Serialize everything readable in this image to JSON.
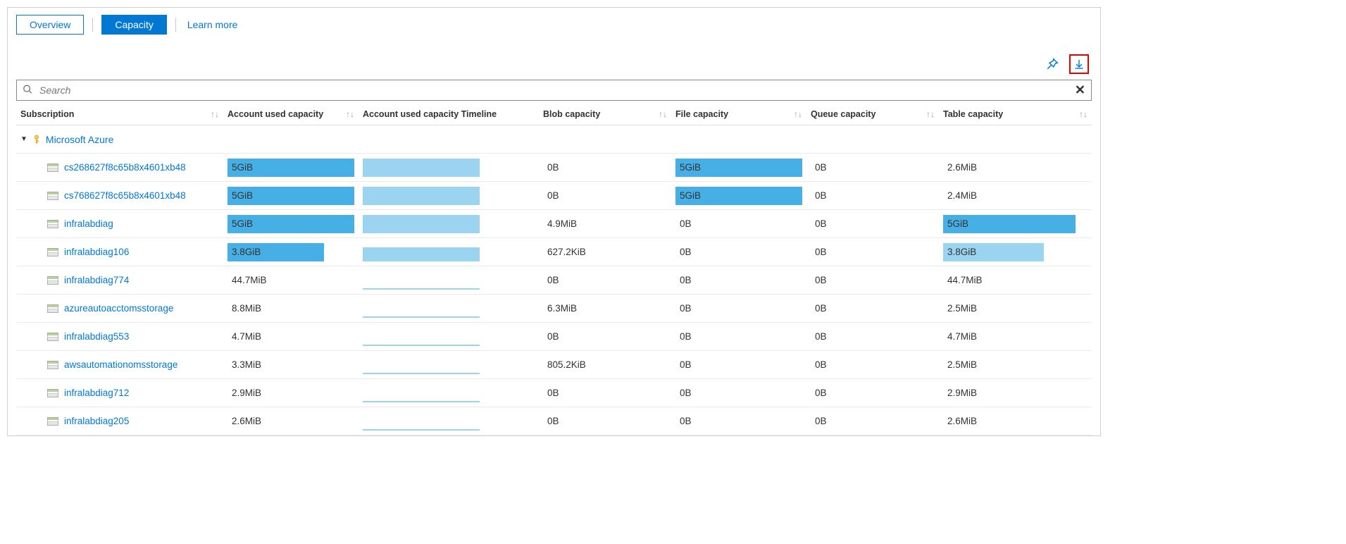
{
  "colors": {
    "primary": "#0078d4",
    "bar_dark": "#46b0e6",
    "bar_light": "#9bd4f0",
    "highlight_border": "#e60000",
    "border": "#d0d0d0",
    "row_border": "#edebe9",
    "text": "#323130",
    "muted": "#a19f9d"
  },
  "tabs": {
    "overview": "Overview",
    "capacity": "Capacity",
    "learn_more": "Learn more"
  },
  "search": {
    "placeholder": "Search"
  },
  "columns": {
    "subscription": "Subscription",
    "account_used": "Account used capacity",
    "timeline": "Account used capacity Timeline",
    "blob": "Blob capacity",
    "file": "File capacity",
    "queue": "Queue capacity",
    "table": "Table capacity"
  },
  "group": {
    "name": "Microsoft Azure"
  },
  "max_capacity_gib": 5,
  "rows": [
    {
      "name": "cs268627f8c65b8x4601xb48",
      "used": {
        "text": "5GiB",
        "fill_pct": 100,
        "color": "#46b0e6"
      },
      "timeline_fill_pct": 100,
      "timeline_color": "#9bd4f0",
      "blob": {
        "text": "0B",
        "fill_pct": 0
      },
      "file": {
        "text": "5GiB",
        "fill_pct": 100,
        "color": "#46b0e6"
      },
      "queue": {
        "text": "0B",
        "fill_pct": 0
      },
      "table": {
        "text": "2.6MiB",
        "fill_pct": 0
      }
    },
    {
      "name": "cs768627f8c65b8x4601xb48",
      "used": {
        "text": "5GiB",
        "fill_pct": 100,
        "color": "#46b0e6"
      },
      "timeline_fill_pct": 100,
      "timeline_color": "#9bd4f0",
      "blob": {
        "text": "0B",
        "fill_pct": 0
      },
      "file": {
        "text": "5GiB",
        "fill_pct": 100,
        "color": "#46b0e6"
      },
      "queue": {
        "text": "0B",
        "fill_pct": 0
      },
      "table": {
        "text": "2.4MiB",
        "fill_pct": 0
      }
    },
    {
      "name": "infralabdiag",
      "used": {
        "text": "5GiB",
        "fill_pct": 100,
        "color": "#46b0e6"
      },
      "timeline_fill_pct": 100,
      "timeline_color": "#9bd4f0",
      "blob": {
        "text": "4.9MiB",
        "fill_pct": 0
      },
      "file": {
        "text": "0B",
        "fill_pct": 0
      },
      "queue": {
        "text": "0B",
        "fill_pct": 0
      },
      "table": {
        "text": "5GiB",
        "fill_pct": 100,
        "color": "#46b0e6"
      }
    },
    {
      "name": "infralabdiag106",
      "used": {
        "text": "3.8GiB",
        "fill_pct": 76,
        "color": "#46b0e6"
      },
      "timeline_fill_pct": 76,
      "timeline_color": "#9bd4f0",
      "blob": {
        "text": "627.2KiB",
        "fill_pct": 0
      },
      "file": {
        "text": "0B",
        "fill_pct": 0
      },
      "queue": {
        "text": "0B",
        "fill_pct": 0
      },
      "table": {
        "text": "3.8GiB",
        "fill_pct": 76,
        "color": "#9bd4f0"
      }
    },
    {
      "name": "infralabdiag774",
      "used": {
        "text": "44.7MiB",
        "fill_pct": 0
      },
      "timeline_fill_pct": 2,
      "timeline_color": "#9bd4f0",
      "blob": {
        "text": "0B",
        "fill_pct": 0
      },
      "file": {
        "text": "0B",
        "fill_pct": 0
      },
      "queue": {
        "text": "0B",
        "fill_pct": 0
      },
      "table": {
        "text": "44.7MiB",
        "fill_pct": 0
      }
    },
    {
      "name": "azureautoacctomsstorage",
      "used": {
        "text": "8.8MiB",
        "fill_pct": 0
      },
      "timeline_fill_pct": 2,
      "timeline_color": "#9bd4f0",
      "blob": {
        "text": "6.3MiB",
        "fill_pct": 0
      },
      "file": {
        "text": "0B",
        "fill_pct": 0
      },
      "queue": {
        "text": "0B",
        "fill_pct": 0
      },
      "table": {
        "text": "2.5MiB",
        "fill_pct": 0
      }
    },
    {
      "name": "infralabdiag553",
      "used": {
        "text": "4.7MiB",
        "fill_pct": 0
      },
      "timeline_fill_pct": 2,
      "timeline_color": "#9bd4f0",
      "blob": {
        "text": "0B",
        "fill_pct": 0
      },
      "file": {
        "text": "0B",
        "fill_pct": 0
      },
      "queue": {
        "text": "0B",
        "fill_pct": 0
      },
      "table": {
        "text": "4.7MiB",
        "fill_pct": 0
      }
    },
    {
      "name": "awsautomationomsstorage",
      "used": {
        "text": "3.3MiB",
        "fill_pct": 0
      },
      "timeline_fill_pct": 2,
      "timeline_color": "#9bd4f0",
      "blob": {
        "text": "805.2KiB",
        "fill_pct": 0
      },
      "file": {
        "text": "0B",
        "fill_pct": 0
      },
      "queue": {
        "text": "0B",
        "fill_pct": 0
      },
      "table": {
        "text": "2.5MiB",
        "fill_pct": 0
      }
    },
    {
      "name": "infralabdiag712",
      "used": {
        "text": "2.9MiB",
        "fill_pct": 0
      },
      "timeline_fill_pct": 2,
      "timeline_color": "#9bd4f0",
      "blob": {
        "text": "0B",
        "fill_pct": 0
      },
      "file": {
        "text": "0B",
        "fill_pct": 0
      },
      "queue": {
        "text": "0B",
        "fill_pct": 0
      },
      "table": {
        "text": "2.9MiB",
        "fill_pct": 0
      }
    },
    {
      "name": "infralabdiag205",
      "used": {
        "text": "2.6MiB",
        "fill_pct": 0
      },
      "timeline_fill_pct": 2,
      "timeline_color": "#9bd4f0",
      "blob": {
        "text": "0B",
        "fill_pct": 0
      },
      "file": {
        "text": "0B",
        "fill_pct": 0
      },
      "queue": {
        "text": "0B",
        "fill_pct": 0
      },
      "table": {
        "text": "2.6MiB",
        "fill_pct": 0
      }
    }
  ]
}
